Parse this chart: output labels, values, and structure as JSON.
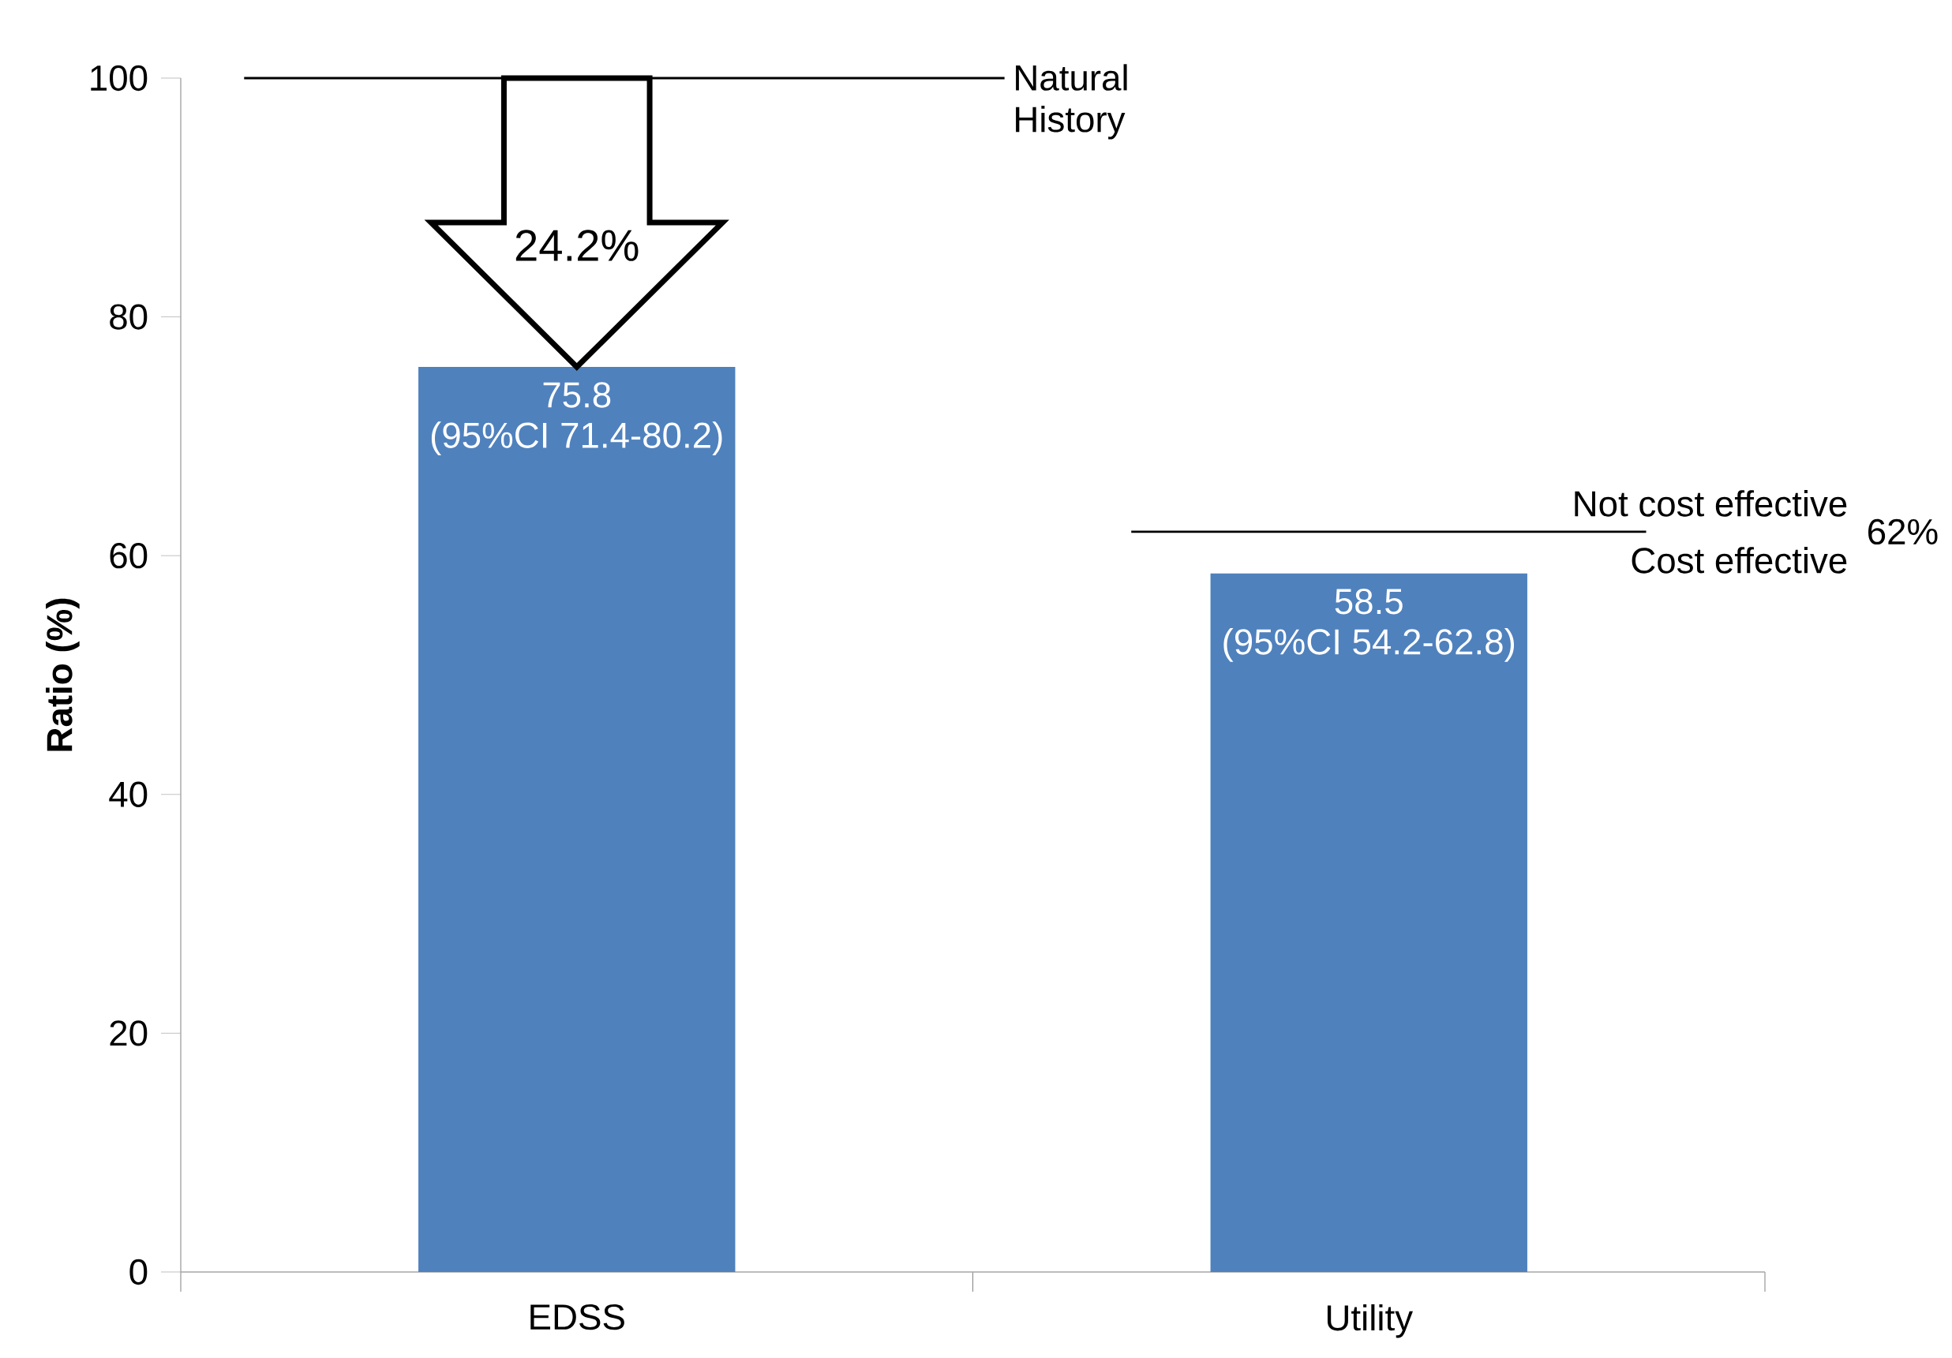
{
  "chart_data": {
    "type": "bar",
    "ylabel": "Ratio (%)",
    "categories": [
      "EDSS",
      "Utility"
    ],
    "values": [
      75.8,
      58.5
    ],
    "color": "#4f81bd",
    "data_labels": true,
    "ylim": [
      0,
      100
    ],
    "yticks": [
      0,
      20,
      40,
      60,
      80,
      100
    ],
    "grid": false,
    "ref_lines": [
      {
        "axis": "y",
        "value": 100,
        "label": "Natural History",
        "color": "#000000"
      },
      {
        "axis": "y",
        "value": 62,
        "label": "Not cost effective",
        "color": "#000000"
      }
    ],
    "annotations": [
      {
        "text": "(95%CI 71.4-80.2)",
        "x": "EDSS",
        "y": 75.8
      },
      {
        "text": "(95%CI 54.2-62.8)",
        "x": "Utility",
        "y": 58.5
      },
      "24.2%",
      "Cost effective",
      "62%"
    ]
  }
}
